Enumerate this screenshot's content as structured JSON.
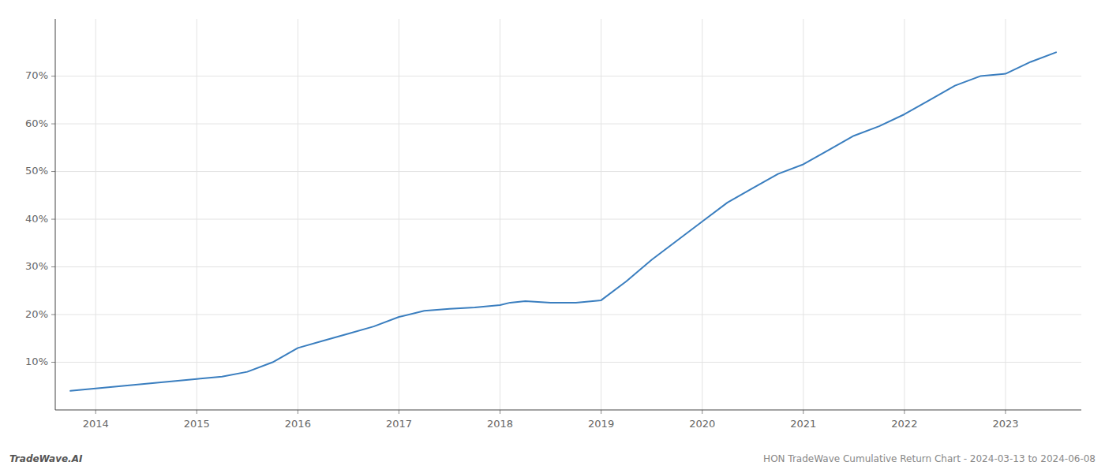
{
  "chart_data": {
    "type": "line",
    "x": [
      2013.75,
      2014.0,
      2014.25,
      2014.5,
      2014.75,
      2015.0,
      2015.25,
      2015.5,
      2015.75,
      2016.0,
      2016.25,
      2016.5,
      2016.75,
      2017.0,
      2017.25,
      2017.5,
      2017.75,
      2018.0,
      2018.1,
      2018.25,
      2018.5,
      2018.75,
      2019.0,
      2019.25,
      2019.5,
      2019.75,
      2020.0,
      2020.25,
      2020.5,
      2020.75,
      2021.0,
      2021.25,
      2021.5,
      2021.75,
      2022.0,
      2022.25,
      2022.5,
      2022.75,
      2023.0,
      2023.25,
      2023.5
    ],
    "values": [
      4.0,
      4.5,
      5.0,
      5.5,
      6.0,
      6.5,
      7.0,
      8.0,
      10.0,
      13.0,
      14.5,
      16.0,
      17.5,
      19.5,
      20.8,
      21.2,
      21.5,
      22.0,
      22.5,
      22.8,
      22.5,
      22.5,
      23.0,
      27.0,
      31.5,
      35.5,
      39.5,
      43.5,
      46.5,
      49.5,
      51.5,
      54.5,
      57.5,
      59.5,
      62.0,
      65.0,
      68.0,
      70.0,
      70.5,
      73.0,
      75.0
    ],
    "color": "#3a7ebf",
    "xlim": [
      2013.6,
      2023.75
    ],
    "ylim": [
      0,
      82
    ],
    "xticks": [
      2014,
      2015,
      2016,
      2017,
      2018,
      2019,
      2020,
      2021,
      2022,
      2023
    ],
    "yticks": [
      {
        "value": 10,
        "label": "10%"
      },
      {
        "value": 20,
        "label": "20%"
      },
      {
        "value": 30,
        "label": "30%"
      },
      {
        "value": 40,
        "label": "40%"
      },
      {
        "value": 50,
        "label": "50%"
      },
      {
        "value": 60,
        "label": "60%"
      },
      {
        "value": 70,
        "label": "70%"
      }
    ],
    "grid": true,
    "annotations": [
      "TradeWave.AI",
      "HON TradeWave Cumulative Return Chart - 2024-03-13 to 2024-06-08"
    ]
  }
}
